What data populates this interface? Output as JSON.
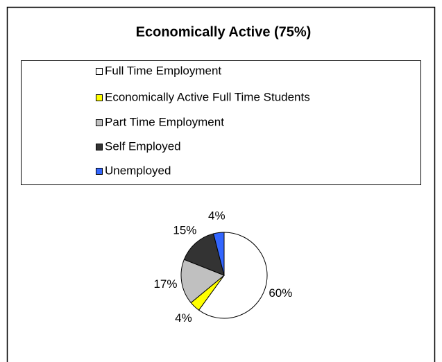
{
  "chart_data": {
    "type": "pie",
    "title": "Economically Active (75%)",
    "categories": [
      "Full Time Employment",
      "Economically Active Full Time Students",
      "Part Time Employment",
      "Self Employed",
      "Unemployed"
    ],
    "values": [
      60,
      4,
      17,
      15,
      4
    ],
    "value_labels": [
      "60%",
      "4%",
      "17%",
      "15%",
      "4%"
    ],
    "colors": [
      "#ffffff",
      "#ffff00",
      "#c0c0c0",
      "#333333",
      "#3366ff"
    ]
  }
}
